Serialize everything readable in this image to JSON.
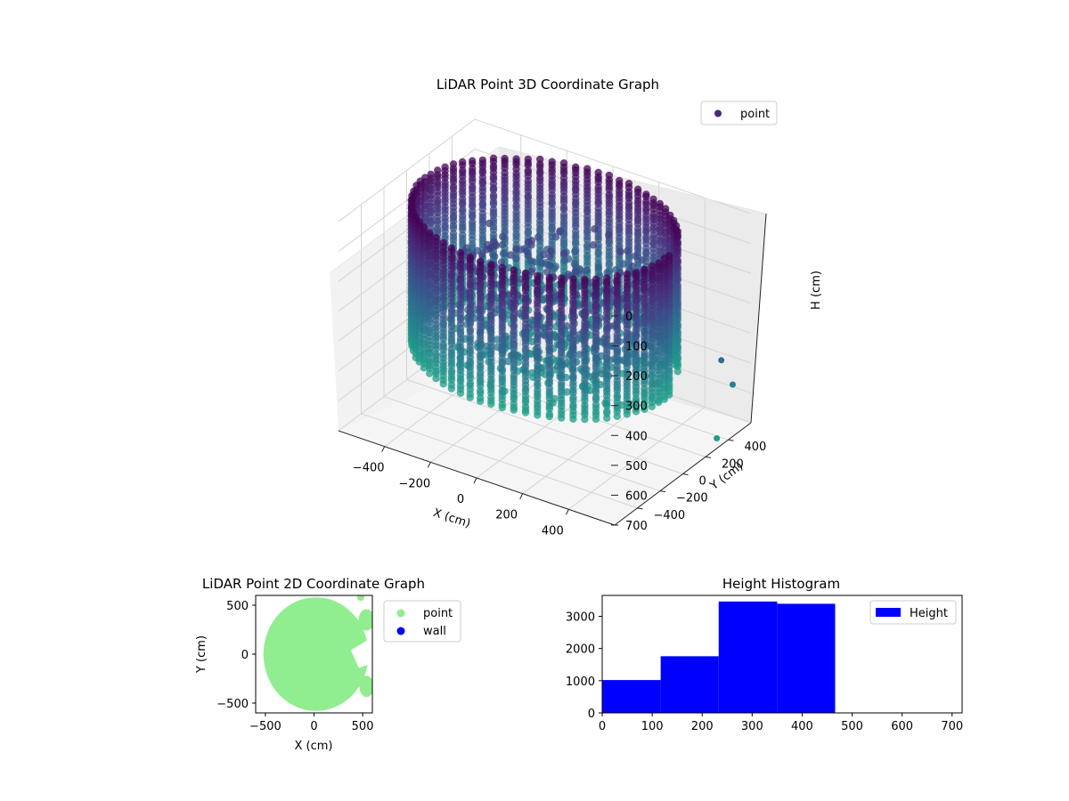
{
  "chart_data": [
    {
      "type": "scatter",
      "projection": "3d",
      "title": "LiDAR Point 3D Coordinate Graph",
      "xlabel": "X (cm)",
      "ylabel": "Y (cm)",
      "zlabel": "H (cm)",
      "x_ticks": [
        "−400",
        "−200",
        "0",
        "200",
        "400"
      ],
      "y_ticks": [
        "−400",
        "−200",
        "0",
        "200",
        "400"
      ],
      "z_ticks": [
        "0",
        "100",
        "200",
        "300",
        "400",
        "500",
        "600",
        "700"
      ],
      "z_inverted": true,
      "grid": true,
      "legend": {
        "position": "top-right",
        "entries": [
          {
            "name": "point",
            "color": "#482878"
          }
        ]
      },
      "colormap": "viridis",
      "structure": "circular wall of points, radius approx 520 cm, height approx 0-470 cm, with scattered interior points",
      "outliers": [
        {
          "x": 560,
          "y": 420,
          "h": 450
        },
        {
          "x": 560,
          "y": 380,
          "h": 700
        },
        {
          "x": 560,
          "y": 520,
          "h": 560
        }
      ]
    },
    {
      "type": "scatter",
      "title": "LiDAR Point 2D Coordinate Graph",
      "xlabel": "X (cm)",
      "ylabel": "Y (cm)",
      "xlim": [
        -600,
        600
      ],
      "ylim": [
        -600,
        600
      ],
      "x_ticks": [
        "−500",
        "0",
        "500"
      ],
      "y_ticks": [
        "−500",
        "0",
        "500"
      ],
      "legend": {
        "position": "outside-right",
        "entries": [
          {
            "name": "point",
            "color": "#90ee90"
          },
          {
            "name": "wall",
            "color": "#0000ff"
          }
        ]
      },
      "structure": "filled disc of points centered near (0,0) with radius approx 520 cm, notch on the right side"
    },
    {
      "type": "bar",
      "subtype": "histogram",
      "title": "Height Histogram",
      "xlim": [
        0,
        720
      ],
      "ylim": [
        0,
        3650
      ],
      "x_ticks": [
        "0",
        "100",
        "200",
        "300",
        "400",
        "500",
        "600",
        "700"
      ],
      "y_ticks": [
        "0",
        "1000",
        "2000",
        "3000"
      ],
      "legend": {
        "position": "top-right",
        "entries": [
          {
            "name": "Height",
            "color": "#0000ff"
          }
        ]
      },
      "bins": [
        {
          "x0": 0,
          "x1": 117,
          "count": 1020
        },
        {
          "x0": 117,
          "x1": 233,
          "count": 1760
        },
        {
          "x0": 233,
          "x1": 350,
          "count": 3460
        },
        {
          "x0": 350,
          "x1": 466,
          "count": 3390
        },
        {
          "x0": 466,
          "x1": 583,
          "count": 0
        },
        {
          "x0": 583,
          "x1": 700,
          "count": 0
        }
      ]
    }
  ]
}
